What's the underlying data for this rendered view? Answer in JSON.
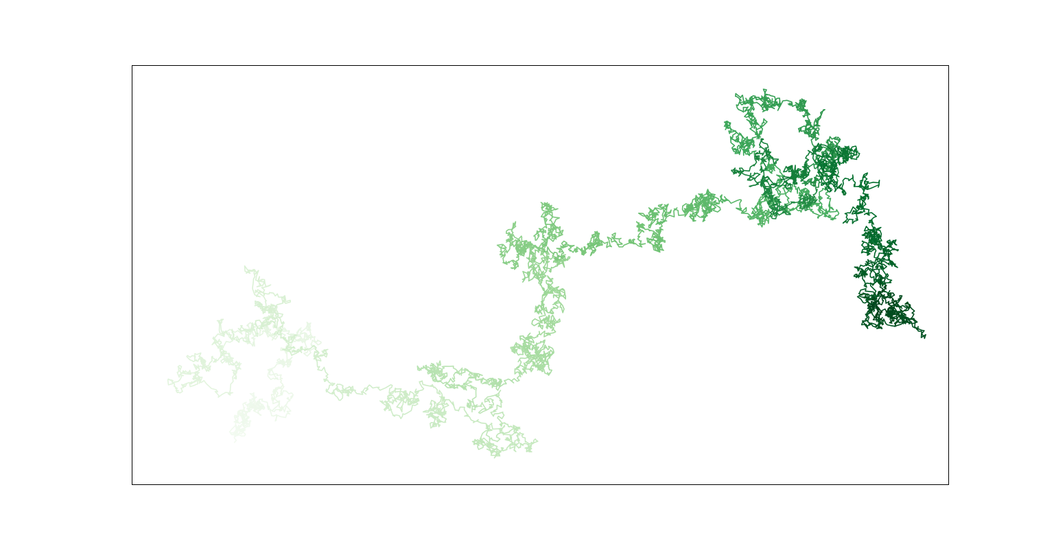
{
  "chart_data": {
    "type": "line",
    "title": "",
    "xlabel": "",
    "ylabel": "",
    "axes_visible": false,
    "grid": false,
    "legend": "none",
    "xlim": [
      0,
      100
    ],
    "ylim": [
      0,
      100
    ],
    "colormap": "Greens",
    "colors": [
      "#f2faf0",
      "#e0f3db",
      "#c7e9c0",
      "#a1d99b",
      "#74c476",
      "#41ab5d",
      "#238b45",
      "#006d2c",
      "#00441b"
    ],
    "waypoints": [
      [
        12.5,
        10
      ],
      [
        13,
        17
      ],
      [
        15,
        19
      ],
      [
        17.5,
        22
      ],
      [
        19,
        29
      ],
      [
        21.5,
        35
      ],
      [
        16,
        38
      ],
      [
        11,
        31
      ],
      [
        4.5,
        25
      ],
      [
        9,
        28
      ],
      [
        14,
        37
      ],
      [
        17.5,
        45
      ],
      [
        16,
        38
      ],
      [
        22.5,
        30
      ],
      [
        28.5,
        23
      ],
      [
        33,
        20
      ],
      [
        36.5,
        18
      ],
      [
        42,
        15
      ],
      [
        45,
        8
      ],
      [
        47,
        13
      ],
      [
        41.5,
        23
      ],
      [
        36,
        28
      ],
      [
        44,
        25
      ],
      [
        48,
        29
      ],
      [
        50.5,
        27
      ],
      [
        51,
        33
      ],
      [
        50.5,
        39
      ],
      [
        51,
        47
      ],
      [
        48.5,
        50
      ],
      [
        51,
        55
      ],
      [
        46.5,
        59
      ],
      [
        48,
        57
      ],
      [
        51,
        59
      ],
      [
        51.5,
        62
      ],
      [
        56.5,
        58
      ],
      [
        61,
        58
      ],
      [
        65,
        59
      ],
      [
        65.5,
        65
      ],
      [
        68.5,
        66
      ],
      [
        71,
        68
      ],
      [
        74,
        66
      ],
      [
        77,
        66
      ],
      [
        81,
        66
      ],
      [
        84.5,
        67
      ],
      [
        78.5,
        76
      ],
      [
        74,
        83
      ],
      [
        76,
        87
      ],
      [
        77,
        92
      ],
      [
        81.5,
        90
      ],
      [
        83,
        85
      ],
      [
        86,
        78
      ],
      [
        82.5,
        77
      ],
      [
        84,
        73
      ],
      [
        80,
        65
      ],
      [
        78,
        70
      ],
      [
        76.5,
        77
      ],
      [
        81,
        75
      ],
      [
        84.5,
        78
      ],
      [
        88,
        80
      ],
      [
        85,
        72
      ],
      [
        87,
        70
      ],
      [
        89.5,
        65
      ],
      [
        90,
        60
      ],
      [
        93,
        57
      ],
      [
        91.5,
        54
      ],
      [
        90,
        50
      ],
      [
        91,
        43
      ],
      [
        94,
        40
      ],
      [
        95.5,
        42
      ],
      [
        92,
        45
      ],
      [
        90.5,
        43
      ]
    ]
  }
}
